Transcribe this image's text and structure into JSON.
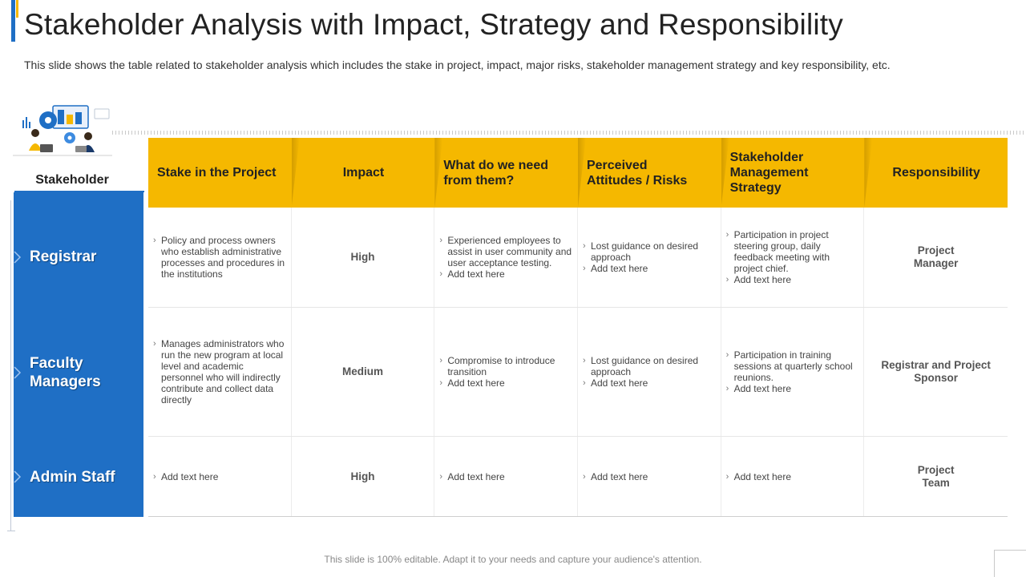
{
  "slide": {
    "title": "Stakeholder Analysis with Impact, Strategy and Responsibility",
    "subtitle": "This slide shows the table related to stakeholder analysis which includes the stake in project, impact, major risks, stakeholder management strategy and key responsibility, etc.",
    "footer": "This slide is 100% editable. Adapt it to your needs and capture your audience's attention."
  },
  "colors": {
    "accent_blue": "#1f6fc5",
    "accent_yellow": "#f5b800"
  },
  "table": {
    "stakeholder_header": "Stakeholder",
    "headers": [
      "Stake in the Project",
      "Impact",
      "What do we need from them?",
      "Perceived   Attitudes / Risks",
      "Stakeholder Management Strategy",
      "Responsibility"
    ],
    "rows": [
      {
        "stakeholder": "Registrar",
        "stake": [
          "Policy and process owners who establish administrative processes and procedures in the institutions"
        ],
        "impact": "High",
        "need": [
          "Experienced employees to assist in user community and user acceptance testing.",
          "Add text here"
        ],
        "risks": [
          "Lost guidance on desired approach",
          "Add text here"
        ],
        "strategy": [
          "Participation in project steering group, daily feedback meeting with project chief.",
          "Add text here"
        ],
        "responsibility": "Project Manager"
      },
      {
        "stakeholder": "Faculty Managers",
        "stake": [
          "Manages administrators who run the new program at local level and academic personnel who will indirectly contribute and collect data directly"
        ],
        "impact": "Medium",
        "need": [
          "Compromise to introduce transition",
          "Add text here"
        ],
        "risks": [
          "Lost guidance on desired approach",
          "Add text here"
        ],
        "strategy": [
          "Participation in training sessions at quarterly school reunions.",
          "Add text here"
        ],
        "responsibility": "Registrar and Project Sponsor"
      },
      {
        "stakeholder": "Admin Staff",
        "stake": [
          "Add text here"
        ],
        "impact": "High",
        "need": [
          "Add text here"
        ],
        "risks": [
          "Add text here"
        ],
        "strategy": [
          "Add text here"
        ],
        "responsibility": "Project Team"
      }
    ]
  }
}
